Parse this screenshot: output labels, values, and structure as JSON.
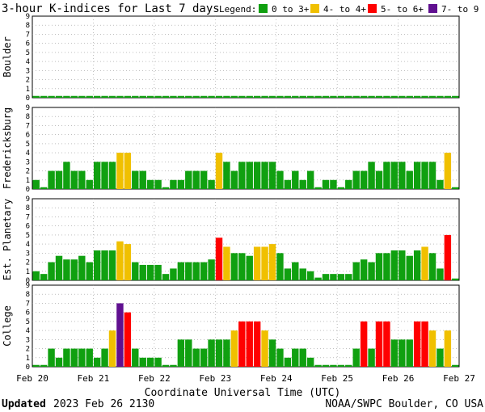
{
  "chart_data": {
    "type": "bar",
    "title": "3-hour K-indices for Last 7 days",
    "legend_title": "Legend:",
    "legend": [
      {
        "label": "0 to 3+",
        "color": "#10a010"
      },
      {
        "label": "4- to 4+",
        "color": "#f0c000"
      },
      {
        "label": "5- to 6+",
        "color": "#ff0000"
      },
      {
        "label": "7- to 9",
        "color": "#601090"
      }
    ],
    "y_ticks": [
      "0",
      "1",
      "2",
      "3",
      "4",
      "5",
      "6",
      "7",
      "8",
      "9"
    ],
    "ylim": [
      0,
      9
    ],
    "x_ticks": [
      "Feb 20",
      "Feb 21",
      "Feb 22",
      "Feb 23",
      "Feb 24",
      "Feb 25",
      "Feb 26",
      "Feb 27"
    ],
    "xlabel": "Coordinate Universal Time (UTC)",
    "bars_per_panel": 56,
    "panels": [
      {
        "name": "Boulder",
        "values": [
          0.2,
          0.2,
          0.2,
          0.2,
          0.2,
          0.2,
          0.2,
          0.2,
          0.2,
          0.2,
          0.2,
          0.2,
          0.2,
          0.2,
          0.2,
          0.2,
          0.2,
          0.2,
          0.2,
          0.2,
          0.2,
          0.2,
          0.2,
          0.2,
          0.2,
          0.2,
          0.2,
          0.2,
          0.2,
          0.2,
          0.2,
          0.2,
          0.2,
          0.2,
          0.2,
          0.2,
          0.2,
          0.2,
          0.2,
          0.2,
          0.2,
          0.2,
          0.2,
          0.2,
          0.2,
          0.2,
          0.2,
          0.2,
          0.2,
          0.2,
          0.2,
          0.2,
          0.2,
          0.2,
          0.2,
          0.2
        ]
      },
      {
        "name": "Fredericksburg",
        "values": [
          1,
          0.2,
          2,
          2,
          3,
          2,
          2,
          1,
          3,
          3,
          3,
          4,
          4,
          2,
          2,
          1,
          1,
          0.2,
          1,
          1,
          2,
          2,
          2,
          1,
          4,
          3,
          2,
          3,
          3,
          3,
          3,
          3,
          2,
          1,
          2,
          1,
          2,
          0.2,
          1,
          1,
          0.2,
          1,
          2,
          2,
          3,
          2,
          3,
          3,
          3,
          2,
          3,
          3,
          3,
          1,
          4,
          0.2
        ]
      },
      {
        "name": "Est. Planetary",
        "values": [
          1,
          0.7,
          2,
          2.7,
          2.3,
          2.3,
          2.7,
          2,
          3.3,
          3.3,
          3.3,
          4.3,
          4,
          2,
          1.7,
          1.7,
          1.7,
          0.7,
          1.3,
          2,
          2,
          2,
          2,
          2.3,
          4.7,
          3.7,
          3,
          3,
          2.7,
          3.7,
          3.7,
          4,
          3,
          1.3,
          2,
          1.3,
          1,
          0.3,
          0.7,
          0.7,
          0.7,
          0.7,
          2,
          2.3,
          2,
          3,
          3,
          3.3,
          3.3,
          2.7,
          3.3,
          3.7,
          3,
          1.3,
          5,
          0.2
        ]
      },
      {
        "name": "College",
        "values": [
          0.2,
          0.2,
          2,
          1,
          2,
          2,
          2,
          2,
          1,
          2,
          4,
          7,
          6,
          2,
          1,
          1,
          1,
          0.2,
          0.2,
          3,
          3,
          2,
          2,
          3,
          3,
          3,
          4,
          5,
          5,
          5,
          4,
          3,
          2,
          1,
          2,
          2,
          1,
          0.2,
          0.2,
          0.2,
          0.2,
          0.2,
          2,
          5,
          2,
          5,
          5,
          3,
          3,
          3,
          5,
          5,
          4,
          2,
          4,
          0.2
        ]
      }
    ],
    "footer_label": "Updated",
    "footer_date": "2023 Feb 26 2130",
    "footer_source": "NOAA/SWPC Boulder, CO USA"
  }
}
